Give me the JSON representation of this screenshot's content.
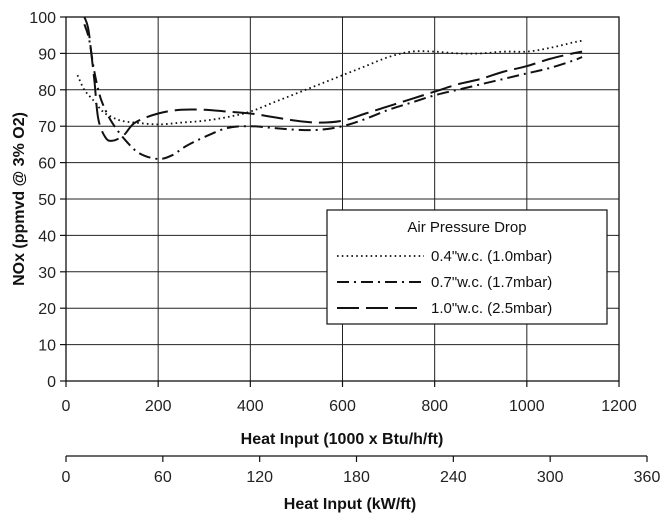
{
  "chart_data": {
    "type": "line",
    "xlabel": "Heat Input (1000 x Btu/h/ft)",
    "ylabel": "NOx (ppmvd @ 3% O2)",
    "xlim": [
      0,
      1200
    ],
    "ylim": [
      0,
      100
    ],
    "x_ticks": [
      0,
      200,
      400,
      600,
      800,
      1000,
      1200
    ],
    "y_ticks": [
      0,
      10,
      20,
      30,
      40,
      50,
      60,
      70,
      80,
      90,
      100
    ],
    "grid": true,
    "secondary_x_axis": {
      "label": "Heat Input (kW/ft)",
      "lim": [
        0,
        360
      ],
      "ticks": [
        0,
        60,
        120,
        180,
        240,
        300,
        360
      ]
    },
    "legend": {
      "title": "Air Pressure Drop",
      "position": "lower-right"
    },
    "series": [
      {
        "name": "0.4\"w.c. (1.0mbar)",
        "style": "dotted",
        "x": [
          25,
          40,
          60,
          80,
          100,
          120,
          150,
          200,
          250,
          300,
          350,
          400,
          450,
          500,
          550,
          600,
          650,
          700,
          750,
          800,
          850,
          900,
          950,
          1000,
          1050,
          1100,
          1120
        ],
        "y": [
          84,
          80,
          77,
          74,
          72.5,
          71.5,
          71,
          70.5,
          71,
          71.5,
          72.5,
          74,
          76.5,
          79,
          81.5,
          84,
          86.5,
          89,
          90.5,
          90.5,
          90,
          90,
          90.5,
          90.5,
          91.5,
          93,
          93.5
        ]
      },
      {
        "name": "0.7\"w.c. (1.7mbar)",
        "style": "dash-dot",
        "x": [
          40,
          50,
          60,
          70,
          80,
          100,
          130,
          160,
          200,
          230,
          260,
          300,
          350,
          400,
          450,
          500,
          550,
          600,
          650,
          700,
          750,
          800,
          850,
          900,
          950,
          1000,
          1050,
          1100,
          1120
        ],
        "y": [
          98,
          94,
          86,
          80,
          76,
          71,
          66,
          62.5,
          61,
          62,
          64.5,
          67,
          69.5,
          70,
          69.5,
          69,
          69,
          70,
          72,
          74.5,
          76.5,
          78.5,
          80,
          81.5,
          83,
          84.5,
          86,
          88,
          89
        ]
      },
      {
        "name": "1.0\"w.c. (2.5mbar)",
        "style": "long-dash",
        "x": [
          40,
          48,
          55,
          62,
          70,
          85,
          100,
          125,
          150,
          200,
          250,
          300,
          350,
          400,
          450,
          500,
          550,
          600,
          650,
          700,
          750,
          800,
          850,
          900,
          950,
          1000,
          1050,
          1100,
          1120
        ],
        "y": [
          100,
          97,
          90,
          82,
          72,
          67,
          66,
          67.5,
          71,
          73.5,
          74.5,
          74.5,
          74,
          73.5,
          72.5,
          71.5,
          71,
          71.5,
          73.5,
          75.5,
          77.5,
          79.5,
          81.5,
          83,
          85,
          86.5,
          88.5,
          90,
          90.5
        ]
      }
    ]
  }
}
